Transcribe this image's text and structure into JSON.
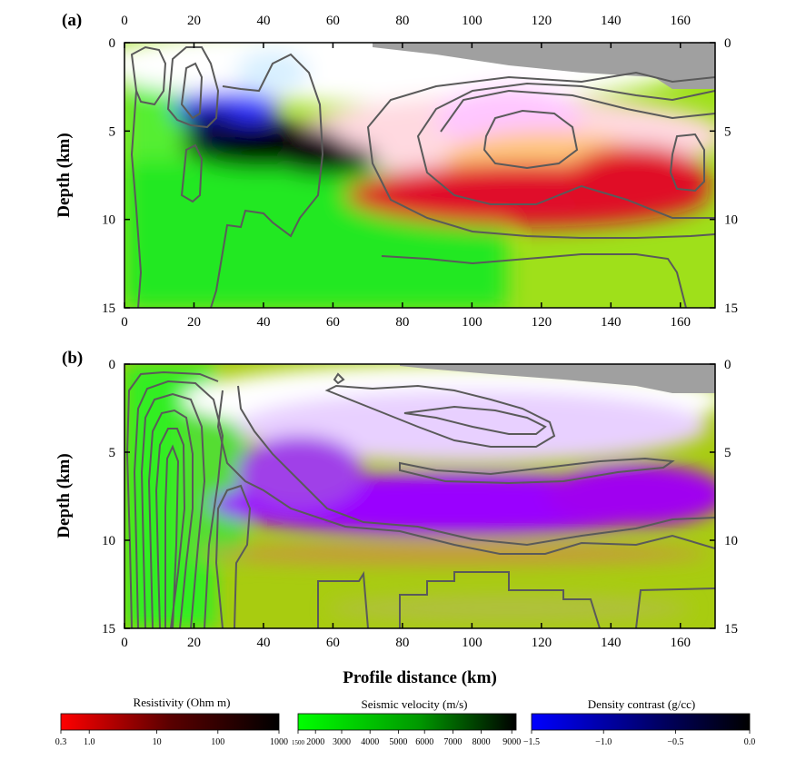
{
  "chart_data": [
    {
      "type": "heatmap",
      "panel_label": "(a)",
      "ylabel": "Depth (km)",
      "xlim": [
        0,
        170
      ],
      "ylim": [
        15,
        0
      ],
      "x_ticks": [
        "0",
        "20",
        "40",
        "60",
        "80",
        "100",
        "120",
        "140",
        "160"
      ],
      "y_ticks": [
        "0",
        "5",
        "10",
        "15"
      ],
      "features": [
        {
          "name": "conductor",
          "color": "#000000",
          "x_range": [
            20,
            70
          ],
          "depth_range": [
            4,
            8
          ]
        },
        {
          "name": "high-resistivity body",
          "color": "#e0102a",
          "x_range": [
            75,
            170
          ],
          "depth_range": [
            5.5,
            11
          ]
        },
        {
          "name": "high-density lens",
          "color": "#ffc1ff",
          "x_range": [
            90,
            135
          ],
          "depth_range": [
            3.5,
            6.5
          ]
        }
      ]
    },
    {
      "type": "heatmap",
      "panel_label": "(b)",
      "ylabel": "Depth (km)",
      "xlabel": "Profile distance (km)",
      "xlim": [
        0,
        170
      ],
      "ylim": [
        15,
        0
      ],
      "x_ticks": [
        "0",
        "20",
        "40",
        "60",
        "80",
        "100",
        "120",
        "140",
        "160"
      ],
      "y_ticks": [
        "0",
        "5",
        "10",
        "15"
      ],
      "features": [
        {
          "name": "purple layer",
          "color": "#9a00ff",
          "x_range": [
            28,
            170
          ],
          "depth_range": [
            5.5,
            11
          ]
        },
        {
          "name": "contour cluster",
          "color": "#555555",
          "x_range": [
            0,
            28
          ],
          "depth_range": [
            1,
            15
          ]
        }
      ]
    }
  ],
  "colorbars": [
    {
      "title": "Resistivity (Ohm m)",
      "colors": [
        "#ff0000",
        "#000000"
      ],
      "ticks": [
        "0.3",
        "1.0",
        "10",
        "100",
        "1000"
      ]
    },
    {
      "title": "Seismic velocity (m/s)",
      "colors": [
        "#00ff00",
        "#000000"
      ],
      "ticks": [
        "1500",
        "2000",
        "3000",
        "4000",
        "5000",
        "6000",
        "7000",
        "8000",
        "9000"
      ]
    },
    {
      "title": "Density contrast  (g/cc)",
      "colors": [
        "#0000ff",
        "#000000"
      ],
      "ticks": [
        "−1.5",
        "−1.0",
        "−0.5",
        "0.0"
      ]
    }
  ]
}
